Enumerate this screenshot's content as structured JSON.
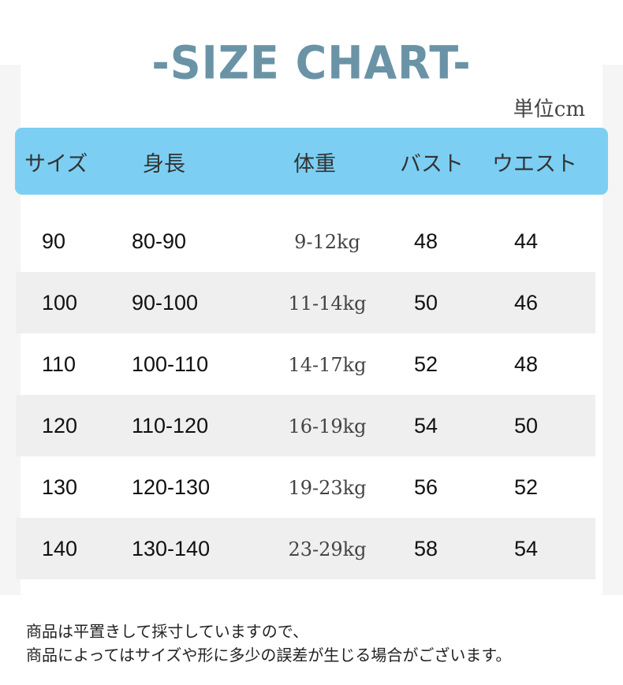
{
  "title": "-SIZE CHART-",
  "unit": "単位cm",
  "columns": [
    "サイズ",
    "身長",
    "体重",
    "バスト",
    "ウエスト"
  ],
  "rows": [
    [
      "90",
      "80-90",
      "9-12kg",
      "48",
      "44"
    ],
    [
      "100",
      "90-100",
      "11-14kg",
      "50",
      "46"
    ],
    [
      "110",
      "100-110",
      "14-17kg",
      "52",
      "48"
    ],
    [
      "120",
      "110-120",
      "16-19kg",
      "54",
      "50"
    ],
    [
      "130",
      "120-130",
      "19-23kg",
      "56",
      "52"
    ],
    [
      "140",
      "130-140",
      "23-29kg",
      "58",
      "54"
    ]
  ],
  "notes": [
    "商品は平置きして採寸していますので、",
    "商品によってはサイズや形に多少の誤差が生じる場合がございます。"
  ],
  "colors": {
    "title": "#6a93a6",
    "header": "#7ccff3",
    "alt_row": "#efefef"
  }
}
